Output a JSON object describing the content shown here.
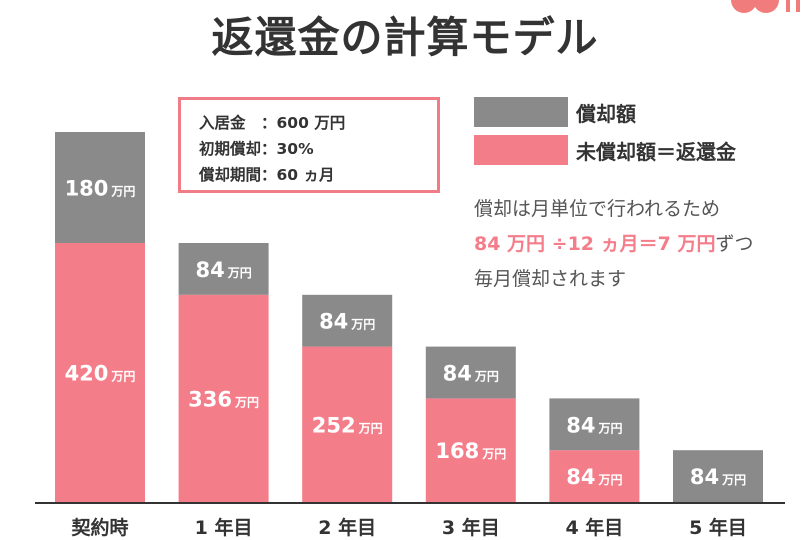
{
  "title": "返還金の計算モデル",
  "logo_text": "いい",
  "info_box": [
    "入居金　：600 万円",
    "初期償却：30%",
    "償却期間：60 ヵ月"
  ],
  "note": {
    "line1": "償却は月単位で行われるため",
    "line2_highlight": "84 万円 ÷12 ヵ月＝7 万円",
    "line2_rest": "ずつ",
    "line3": "毎月償却されます"
  },
  "colors": {
    "gray": "#8a8a8a",
    "pink": "#f47d8a",
    "border": "#f07c88"
  },
  "chart_data": {
    "type": "bar",
    "stacked": true,
    "categories": [
      "契約時",
      "1 年目",
      "2 年目",
      "3 年目",
      "4 年目",
      "5 年目"
    ],
    "unit": "万円",
    "series": [
      {
        "name": "未償却額＝返還金",
        "color": "#f47d8a",
        "values": [
          420,
          336,
          252,
          168,
          84,
          0
        ]
      },
      {
        "name": "償却額",
        "color": "#8a8a8a",
        "values": [
          180,
          84,
          84,
          84,
          84,
          84
        ]
      }
    ],
    "ylim": [
      0,
      600
    ],
    "grid": false,
    "legend": "top-right"
  }
}
